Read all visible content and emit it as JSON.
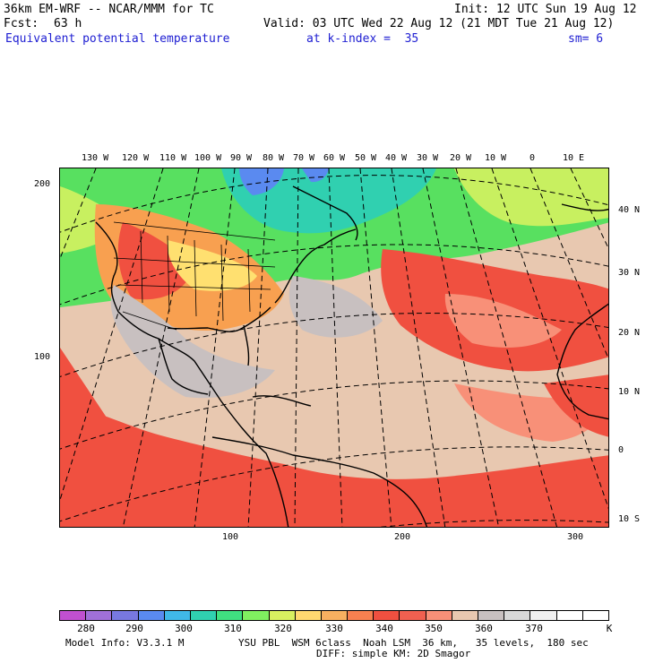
{
  "header": {
    "model_title": "36km EM-WRF -- NCAR/MMM for TC",
    "init": "Init: 12 UTC Sun 19 Aug 12",
    "fcst_label": "Fcst:",
    "fcst_value": "63 h",
    "valid": "Valid: 03 UTC Wed 22 Aug 12 (21 MDT Tue 21 Aug 12)",
    "field_name": "Equivalent potential temperature",
    "k_index": "at k-index =  35",
    "sm": "sm= 6"
  },
  "map": {
    "lon_labels": [
      "130 W",
      "120 W",
      "110 W",
      "100 W",
      "90 W",
      "80 W",
      "70 W",
      "60 W",
      "50 W",
      "40 W",
      "30 W",
      "20 W",
      "10 W",
      "0",
      "10 E"
    ],
    "lat_labels": [
      "40 N",
      "30 N",
      "20 N",
      "10 N",
      "0",
      "10 S"
    ],
    "grid_y_labels": [
      "200",
      "100"
    ],
    "grid_x_labels": [
      "100",
      "200",
      "300"
    ],
    "colors": {
      "cold": "#5a8af0",
      "cyan": "#30d0b0",
      "green": "#58e060",
      "yellow_green": "#c8f060",
      "yellow": "#ffe070",
      "orange": "#f8a050",
      "red": "#f05040",
      "salmon": "#f89078",
      "tan": "#e8c8b0",
      "gray": "#c8c0c0"
    }
  },
  "colorbar": {
    "colors": [
      "#c050d0",
      "#a070d8",
      "#7878e0",
      "#5a8af0",
      "#40b8e8",
      "#30d0b0",
      "#40e080",
      "#80f060",
      "#d8f060",
      "#ffd870",
      "#f8b060",
      "#f88050",
      "#f05040",
      "#f06050",
      "#f89078",
      "#e8c8b0",
      "#c8c0c0",
      "#d8d8d8",
      "#f0f0f0",
      "#ffffff",
      "#ffffff"
    ],
    "labels": [
      "280",
      "290",
      "300",
      "310",
      "320",
      "330",
      "340",
      "350",
      "360",
      "370"
    ],
    "unit": "K"
  },
  "footer": {
    "model_info": "Model Info: V3.3.1 M",
    "physics_line1": "YSU PBL  WSM 6class  Noah LSM  36 km,   35 levels,  180 sec",
    "physics_line2": "DIFF: simple KM: 2D Smagor"
  }
}
